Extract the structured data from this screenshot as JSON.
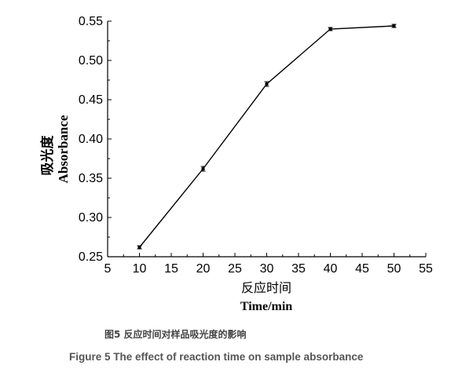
{
  "chart_data": {
    "type": "line",
    "xlabel_cn": "反应时间",
    "xlabel": "Time/min",
    "ylabel_cn": "吸光度",
    "ylabel": "Absorbance",
    "xlim": [
      5,
      55
    ],
    "ylim": [
      0.25,
      0.55
    ],
    "xticks": [
      "5",
      "10",
      "15",
      "20",
      "25",
      "30",
      "35",
      "40",
      "45",
      "50",
      "55"
    ],
    "yticks": [
      "0.25",
      "0.30",
      "0.35",
      "0.40",
      "0.45",
      "0.50",
      "0.55"
    ],
    "x": [
      10,
      20,
      30,
      40,
      50
    ],
    "y": [
      0.262,
      0.362,
      0.47,
      0.54,
      0.544
    ],
    "error": [
      0.002,
      0.003,
      0.003,
      0.002,
      0.002
    ],
    "grid": false,
    "line_color": "#000000"
  },
  "caption": {
    "cn": "图5  反应时间对样品吸光度的影响",
    "en": "Figure 5  The effect of reaction time on sample absorbance"
  }
}
